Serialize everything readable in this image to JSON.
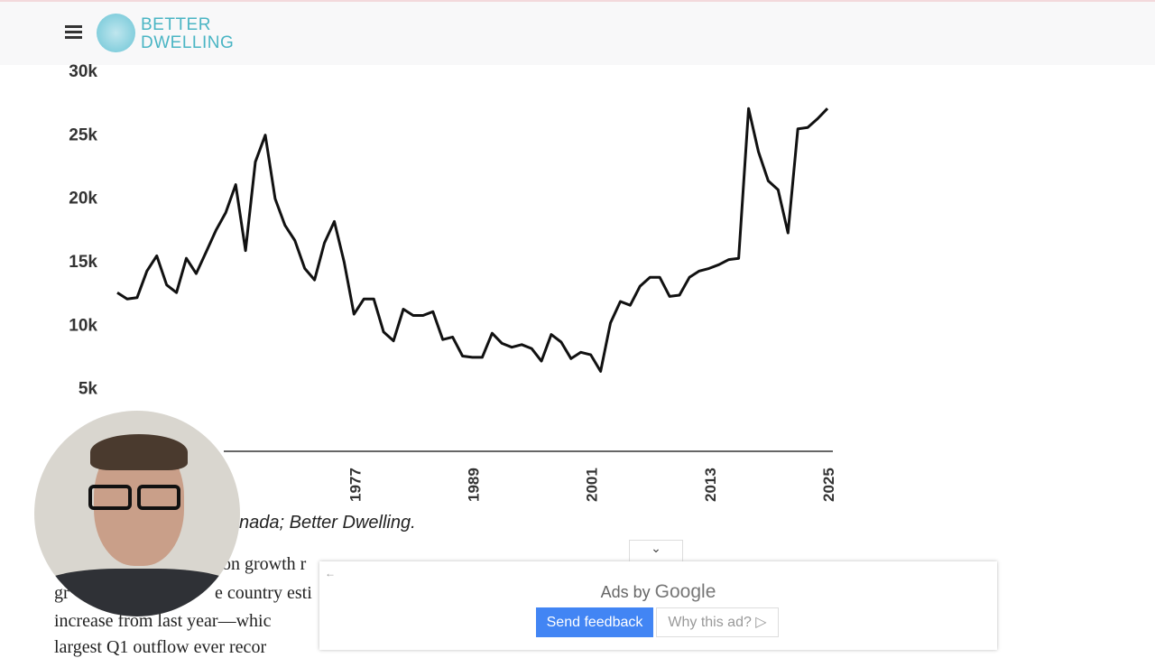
{
  "header": {
    "logo_line1": "BETTER",
    "logo_line2": "DWELLING"
  },
  "chart_data": {
    "type": "line",
    "color": "#111111",
    "x": [
      1953,
      1954,
      1955,
      1956,
      1957,
      1958,
      1959,
      1960,
      1961,
      1962,
      1963,
      1964,
      1965,
      1966,
      1967,
      1968,
      1969,
      1970,
      1971,
      1972,
      1973,
      1974,
      1975,
      1976,
      1977,
      1978,
      1979,
      1980,
      1981,
      1982,
      1983,
      1984,
      1985,
      1986,
      1987,
      1988,
      1989,
      1990,
      1991,
      1992,
      1993,
      1994,
      1995,
      1996,
      1997,
      1998,
      1999,
      2000,
      2001,
      2002,
      2003,
      2004,
      2005,
      2006,
      2007,
      2008,
      2009,
      2010,
      2011,
      2012,
      2013,
      2014,
      2015,
      2016,
      2017,
      2018,
      2019,
      2020,
      2021,
      2022,
      2023,
      2024,
      2025
    ],
    "values": [
      12500,
      12000,
      12100,
      14200,
      15400,
      13100,
      12500,
      15200,
      14000,
      15700,
      17400,
      18800,
      21000,
      15800,
      22800,
      24900,
      19900,
      17800,
      16600,
      14400,
      13500,
      16400,
      18100,
      14900,
      10800,
      12000,
      12000,
      9400,
      8700,
      11200,
      10700,
      10700,
      11000,
      8800,
      9000,
      7500,
      7400,
      7400,
      9300,
      8500,
      8200,
      8400,
      8100,
      7100,
      9200,
      8600,
      7300,
      7800,
      7600,
      6300,
      10100,
      11800,
      11500,
      13000,
      13700,
      13700,
      12200,
      12300,
      13700,
      14200,
      14400,
      14700,
      15100,
      15200,
      27000,
      23600,
      21300,
      20600,
      17200,
      25400,
      25500,
      26200,
      27000
    ],
    "xlim": [
      1953,
      2025
    ],
    "xticks": [
      1977,
      1989,
      2001,
      2013,
      2025
    ],
    "ylim": [
      0,
      30000
    ],
    "yticks": [
      {
        "value": 5000,
        "label": "5k"
      },
      {
        "value": 10000,
        "label": "10k"
      },
      {
        "value": 15000,
        "label": "15k"
      },
      {
        "value": 20000,
        "label": "20k"
      },
      {
        "value": 25000,
        "label": "25k"
      },
      {
        "value": 30000,
        "label": "30k"
      }
    ],
    "source": "nada; Better Dwelling."
  },
  "article": {
    "lines": [
      "on growth r",
      "gr",
      "e country esti",
      "increase from last year—whic",
      "largest Q1 outflow ever recor"
    ]
  },
  "ad": {
    "ads_by": "Ads by",
    "google": "Google",
    "send_feedback": "Send feedback",
    "why": "Why this ad?"
  }
}
